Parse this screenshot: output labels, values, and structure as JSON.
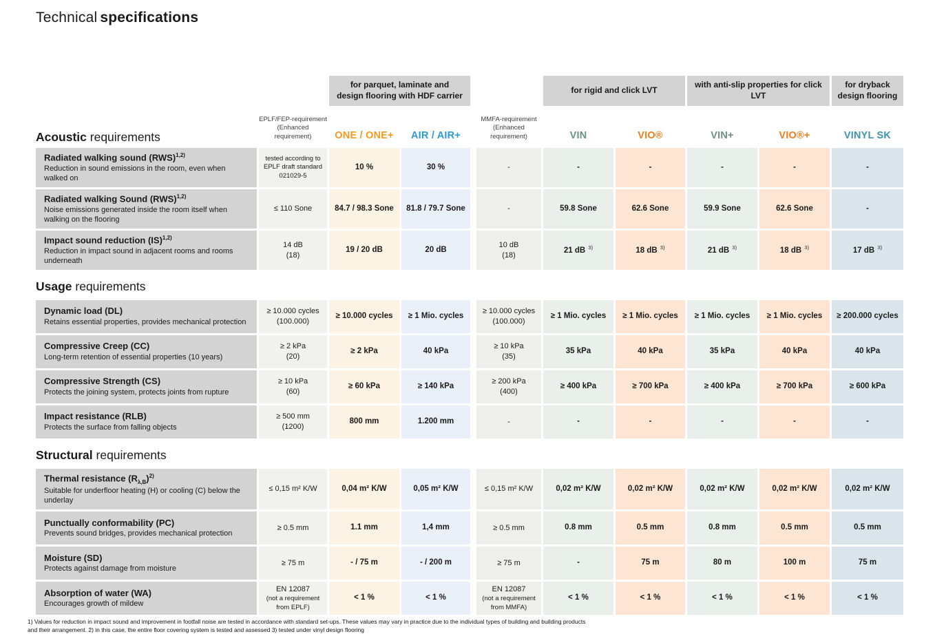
{
  "page": {
    "title_light": "Technical",
    "title_bold": "specifications"
  },
  "colors": {
    "brand_orange": "#F39A1E",
    "brand_blue": "#2D9AD5",
    "brand_teal": "#6D9181",
    "brand_teal_blue": "#3F93AD",
    "header_gray": "#D3D3D3",
    "cell_cream": "#FDF3E4",
    "cell_light_blue": "#E9F0F8",
    "cell_sage": "#E9EFEB",
    "cell_peach": "#FCE5D3",
    "cell_blue_gray": "#D9E5EA"
  },
  "group_headers": [
    "for parquet, laminate and\ndesign flooring with HDF carrier",
    "for rigid and click LVT",
    "with anti-slip properties for click LVT",
    "for dryback\ndesign flooring"
  ],
  "columns": {
    "eplf": {
      "line1": "EPLF/FEP-requirement",
      "line2": "(Enhanced requirement)"
    },
    "one": {
      "label": "ONE / ONE+"
    },
    "air": {
      "label": "AIR / AIR+"
    },
    "mmfa": {
      "line1": "MMFA-requirement",
      "line2": "(Enhanced requirement)"
    },
    "vin": {
      "label": "VIN"
    },
    "vio": {
      "label": "VIO®"
    },
    "vinp": {
      "label": "VIN+"
    },
    "viop": {
      "label": "VIO®+"
    },
    "vinyl": {
      "label": "VINYL SK"
    }
  },
  "sections": [
    {
      "id": "acoustic",
      "title_bold": "Acoustic",
      "title_rest": " requirements",
      "rows": [
        {
          "label": [
            {
              "t": "Radiated walking sound (RWS)"
            },
            {
              "sup": "1,2)"
            }
          ],
          "desc": "Reduction in sound emissions in the room, even when walked on",
          "cells": [
            {
              "small": "tested according to\nEPLF draft standard\n021029-5"
            },
            "10 %",
            "30 %",
            "-",
            "-",
            "-",
            "-",
            "-",
            "-"
          ]
        },
        {
          "label": [
            {
              "t": "Radiated walking Sound (RWS)"
            },
            {
              "sup": "1,2)"
            }
          ],
          "desc": "Noise emissions generated inside the room itself when walking on the flooring",
          "cells": [
            "≤ 110 Sone",
            "84.7 / 98.3 Sone",
            "81.8 / 79.7 Sone",
            "-",
            "59.8 Sone",
            "62.6 Sone",
            "59.9 Sone",
            "62.6 Sone",
            "-"
          ]
        },
        {
          "label": [
            {
              "t": "Impact sound reduction (IS)"
            },
            {
              "sup": "1,2)"
            }
          ],
          "desc": "Reduction in impact sound in adjacent rooms and rooms underneath",
          "cells": [
            {
              "lines": [
                "14 dB",
                "(18)"
              ]
            },
            "19 / 20 dB",
            "20 dB",
            {
              "lines": [
                "10 dB",
                "(18)"
              ]
            },
            {
              "t": "21 dB",
              "sup": "3)"
            },
            {
              "t": "18 dB",
              "sup": "3)"
            },
            {
              "t": "21 dB",
              "sup": "3)"
            },
            {
              "t": "18 dB",
              "sup": "3)"
            },
            {
              "t": "17 dB",
              "sup": "3)"
            }
          ]
        }
      ]
    },
    {
      "id": "usage",
      "title_bold": "Usage",
      "title_rest": " requirements",
      "rows": [
        {
          "label": [
            {
              "t": "Dynamic load (DL)"
            }
          ],
          "desc": "Retains essential properties, provides mechanical protection",
          "cells": [
            {
              "lines": [
                "≥ 10.000 cycles",
                "(100.000)"
              ]
            },
            "≥ 10.000 cycles",
            "≥ 1 Mio. cycles",
            {
              "lines": [
                "≥ 10.000 cycles",
                "(100.000)"
              ]
            },
            "≥ 1 Mio. cycles",
            "≥ 1 Mio. cycles",
            "≥ 1 Mio. cycles",
            "≥ 1 Mio. cycles",
            "≥ 200.000 cycles"
          ]
        },
        {
          "label": [
            {
              "t": "Compressive Creep (CC)"
            }
          ],
          "desc": "Long-term retention of essential properties (10 years)",
          "cells": [
            {
              "lines": [
                "≥ 2 kPa",
                "(20)"
              ]
            },
            "≥ 2 kPa",
            "40 kPa",
            {
              "lines": [
                "≥ 10 kPa",
                "(35)"
              ]
            },
            "35 kPa",
            "40 kPa",
            "35 kPa",
            "40 kPa",
            "40 kPa"
          ]
        },
        {
          "label": [
            {
              "t": "Compressive Strength (CS)"
            }
          ],
          "desc": "Protects the joining system, protects joints from rupture",
          "cells": [
            {
              "lines": [
                "≥ 10 kPa",
                "(60)"
              ]
            },
            "≥ 60 kPa",
            "≥ 140 kPa",
            {
              "lines": [
                "≥ 200 kPa",
                "(400)"
              ]
            },
            "≥ 400 kPa",
            "≥ 700 kPa",
            "≥ 400 kPa",
            "≥ 700 kPa",
            "≥ 600 kPa"
          ]
        },
        {
          "label": [
            {
              "t": "Impact resistance (RLB)"
            }
          ],
          "desc": "Protects the surface from falling objects",
          "cells": [
            {
              "lines": [
                "≥ 500 mm",
                "(1200)"
              ]
            },
            "800 mm",
            "1.200 mm",
            "-",
            "-",
            "-",
            "-",
            "-",
            "-"
          ]
        }
      ]
    },
    {
      "id": "structural",
      "title_bold": "Structural",
      "title_rest": " requirements",
      "rows": [
        {
          "label": [
            {
              "t": "Thermal resistance (R"
            },
            {
              "sub": "λ,B"
            },
            {
              "t": ")"
            },
            {
              "sup": "2)"
            }
          ],
          "desc": "Suitable for underfloor heating (H) or cooling (C) below the underlay",
          "cells": [
            "≤ 0,15 m² K/W",
            "0,04 m² K/W",
            "0,05 m² K/W",
            "≤ 0,15 m² K/W",
            "0,02 m² K/W",
            "0,02 m² K/W",
            "0,02 m² K/W",
            "0,02 m² K/W",
            "0,02 m² K/W"
          ]
        },
        {
          "label": [
            {
              "t": "Punctually conformability (PC)"
            }
          ],
          "desc": "Prevents sound bridges, provides mechanical protection",
          "cells": [
            "≥ 0.5 mm",
            "1.1 mm",
            "1,4 mm",
            "≥ 0.5 mm",
            "0.8 mm",
            "0.5 mm",
            "0.8 mm",
            "0.5 mm",
            "0.5 mm"
          ]
        },
        {
          "label": [
            {
              "t": "Moisture (SD)"
            }
          ],
          "desc": "Protects against damage from moisture",
          "cells": [
            "≥ 75 m",
            "- / 75 m",
            "- / 200 m",
            "≥ 75 m",
            "-",
            "75 m",
            "80 m",
            "100 m",
            "75 m"
          ]
        },
        {
          "label": [
            {
              "t": "Absorption of water (WA)"
            }
          ],
          "desc": "Encourages growth of mildew",
          "cells": [
            {
              "main": "EN 12087",
              "small": "(not a requirement\nfrom EPLF)"
            },
            "< 1 %",
            "< 1 %",
            {
              "main": "EN 12087",
              "small": "(not a requirement\nfrom MMFA)"
            },
            "< 1 %",
            "< 1 %",
            "< 1 %",
            "< 1 %",
            "< 1 %"
          ]
        }
      ]
    }
  ],
  "footnote": [
    "1) Values for reduction in impact sound and improvement in footfall noise are tested in accordance with standard set-ups. These values may vary in practice due to the individual types of building and building products",
    "and their arrangement. 2) in this case, the entire floor covering system is tested and assessed    3) tested under vinyl design flooring"
  ]
}
